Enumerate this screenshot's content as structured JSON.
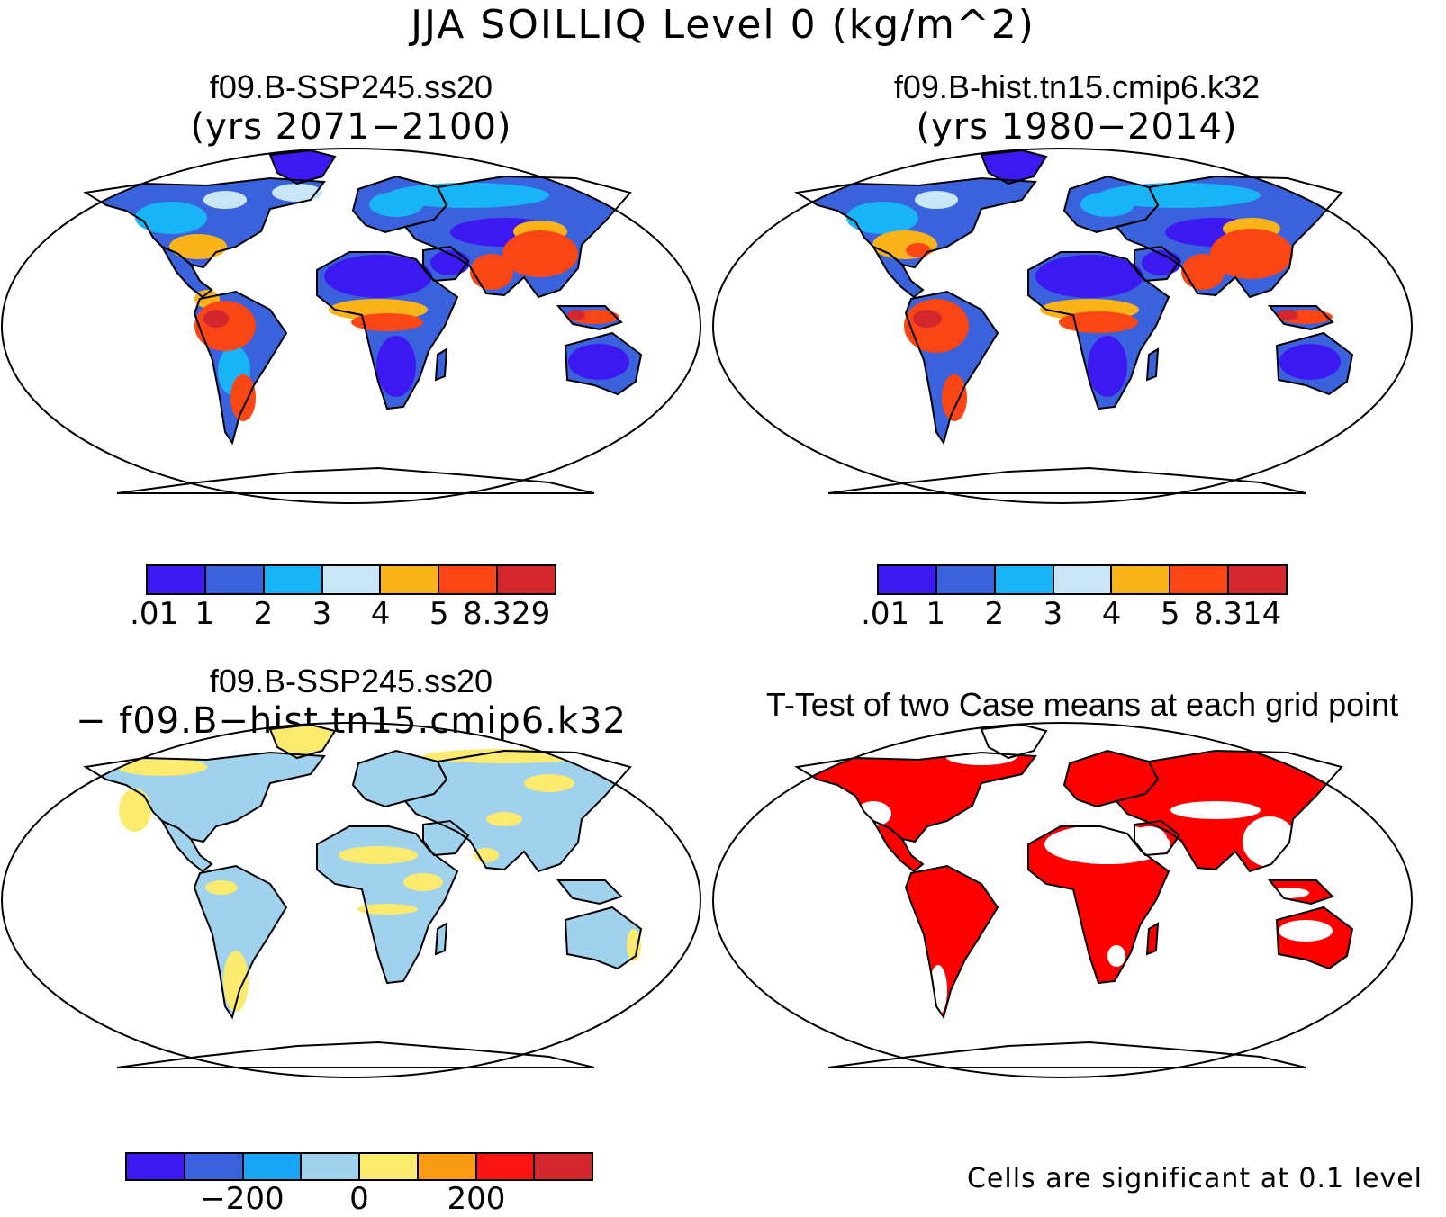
{
  "title": "JJA SOILLIQ Level 0 (kg/m^2)",
  "panels": {
    "top_left": {
      "title": "f09.B-SSP245.ss20",
      "subtitle": "(yrs 2071−2100)"
    },
    "top_right": {
      "title": "f09.B-hist.tn15.cmip6.k32",
      "subtitle": "(yrs 1980−2014)"
    },
    "bottom_left": {
      "title": "f09.B-SSP245.ss20",
      "subtitle": "− f09.B−hist.tn15.cmip6.k32"
    },
    "bottom_right": {
      "title": "T-Test of two Case means at each grid point",
      "note": "Cells are significant at 0.1 level"
    }
  },
  "colorbars": {
    "case1": {
      "colors": [
        "#3c19f0",
        "#3a62dc",
        "#19b4f5",
        "#c8e6f5",
        "#fab419",
        "#fa4614",
        "#d2282d"
      ],
      "ticks": [
        ".01",
        "1",
        "2",
        "3",
        "4",
        "5",
        "8.329"
      ]
    },
    "case2": {
      "colors": [
        "#3c19f0",
        "#3a62dc",
        "#19b4f5",
        "#c8e6f5",
        "#fab419",
        "#fa4614",
        "#d2282d"
      ],
      "ticks": [
        ".01",
        "1",
        "2",
        "3",
        "4",
        "5",
        "8.314"
      ]
    },
    "diff": {
      "colors": [
        "#3c19f0",
        "#3a62dc",
        "#19a5f5",
        "#a0d2ee",
        "#faeb6e",
        "#fa9b14",
        "#fa1414",
        "#d2282d"
      ],
      "ticks": [
        "−200",
        "0",
        "200"
      ]
    }
  },
  "significance_color": "#ff0000"
}
